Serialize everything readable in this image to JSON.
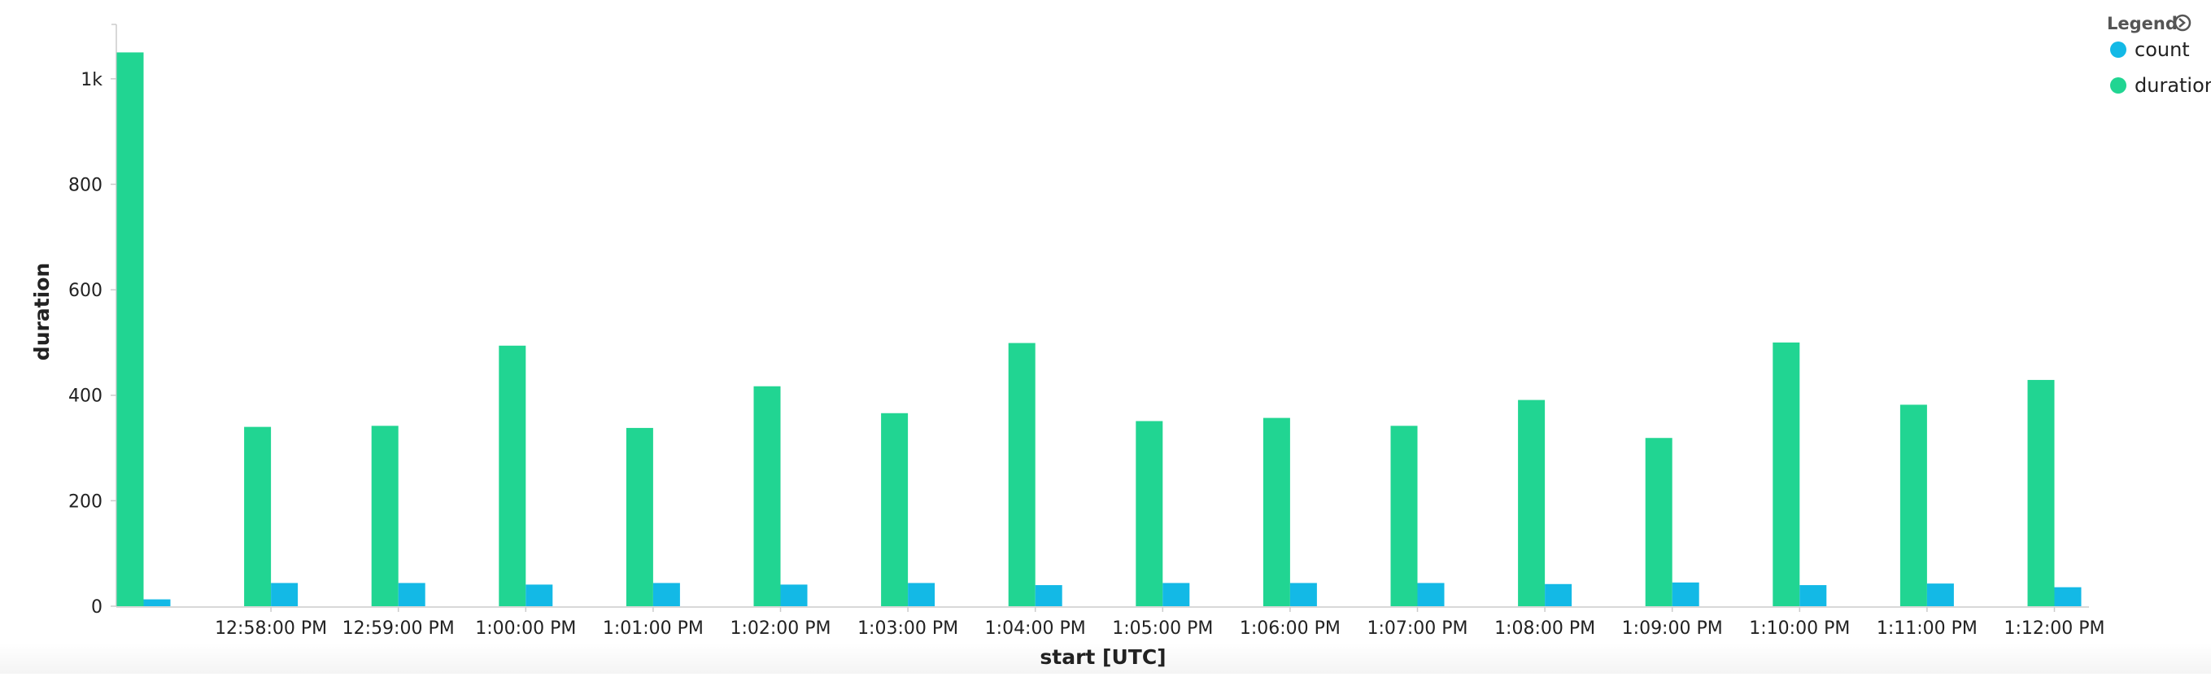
{
  "chart_data": {
    "type": "bar",
    "title": "",
    "xlabel": "start [UTC]",
    "ylabel": "duration",
    "ylim": [
      0,
      1100
    ],
    "yticks": [
      0,
      200,
      400,
      600,
      800,
      1000
    ],
    "ytick_labels": [
      "0",
      "200",
      "400",
      "600",
      "800",
      "1k"
    ],
    "grid": false,
    "legend": {
      "title": "Legend",
      "placement": "top-right",
      "items": [
        {
          "name": "count",
          "color": "#13b9e6"
        },
        {
          "name": "duration",
          "color": "#21d592"
        }
      ]
    },
    "categories": [
      "",
      "12:58:00 PM",
      "12:59:00 PM",
      "1:00:00 PM",
      "1:01:00 PM",
      "1:02:00 PM",
      "1:03:00 PM",
      "1:04:00 PM",
      "1:05:00 PM",
      "1:06:00 PM",
      "1:07:00 PM",
      "1:08:00 PM",
      "1:09:00 PM",
      "1:10:00 PM",
      "1:11:00 PM",
      "1:12:00 PM"
    ],
    "series": [
      {
        "name": "duration",
        "color": "#21d592",
        "values": [
          1050,
          340,
          342,
          494,
          338,
          417,
          366,
          499,
          351,
          357,
          342,
          391,
          319,
          500,
          382,
          429
        ]
      },
      {
        "name": "count",
        "color": "#13b9e6",
        "values": [
          13,
          44,
          44,
          41,
          44,
          41,
          44,
          40,
          44,
          44,
          44,
          42,
          45,
          40,
          43,
          36
        ]
      }
    ]
  }
}
